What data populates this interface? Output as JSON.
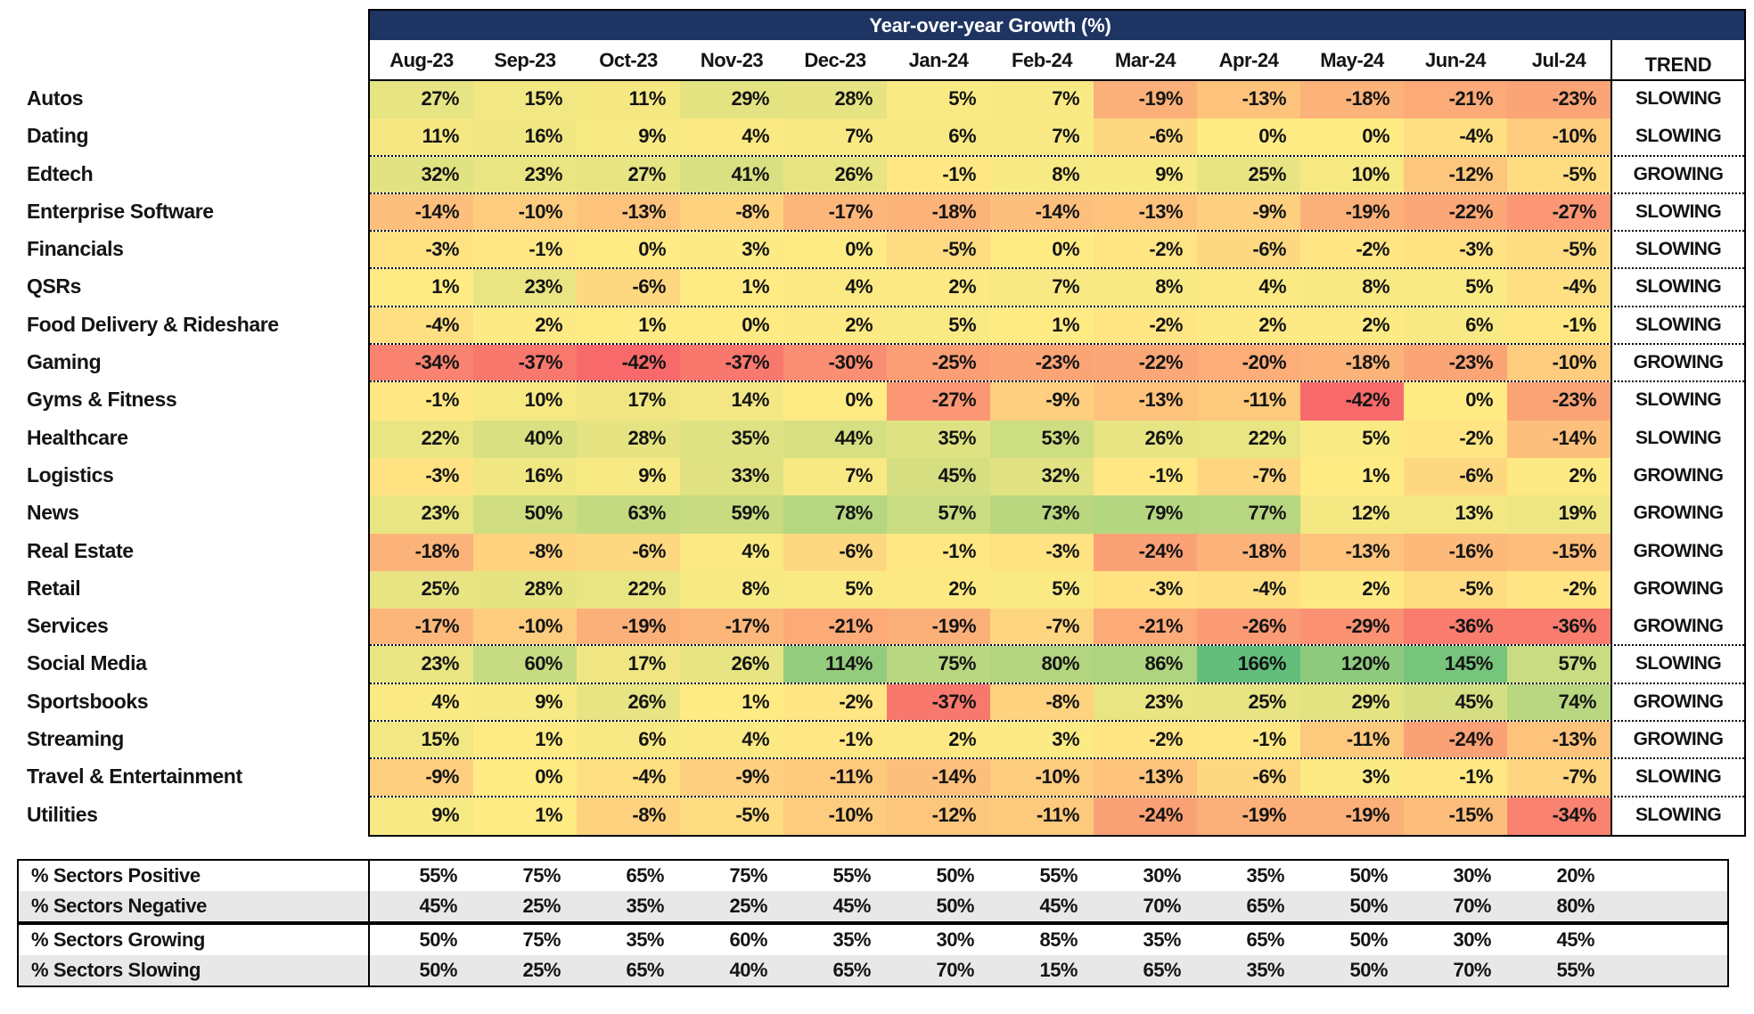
{
  "chart_data": {
    "type": "heatmap",
    "title": "Year-over-year Growth (%)",
    "trend_header": "TREND",
    "columns": [
      "Aug-23",
      "Sep-23",
      "Oct-23",
      "Nov-23",
      "Dec-23",
      "Jan-24",
      "Feb-24",
      "Mar-24",
      "Apr-24",
      "May-24",
      "Jun-24",
      "Jul-24"
    ],
    "value_suffix": "%",
    "rows": [
      {
        "label": "Autos",
        "values": [
          27,
          15,
          11,
          29,
          28,
          5,
          7,
          -19,
          -13,
          -18,
          -21,
          -23
        ],
        "trend": "SLOWING",
        "dotted_below": false
      },
      {
        "label": "Dating",
        "values": [
          11,
          16,
          9,
          4,
          7,
          6,
          7,
          -6,
          0,
          0,
          -4,
          -10
        ],
        "trend": "SLOWING",
        "dotted_below": true
      },
      {
        "label": "Edtech",
        "values": [
          32,
          23,
          27,
          41,
          26,
          -1,
          8,
          9,
          25,
          10,
          -12,
          -5
        ],
        "trend": "GROWING",
        "dotted_below": true
      },
      {
        "label": "Enterprise Software",
        "values": [
          -14,
          -10,
          -13,
          -8,
          -17,
          -18,
          -14,
          -13,
          -9,
          -19,
          -22,
          -27
        ],
        "trend": "SLOWING",
        "dotted_below": true
      },
      {
        "label": "Financials",
        "values": [
          -3,
          -1,
          0,
          3,
          0,
          -5,
          0,
          -2,
          -6,
          -2,
          -3,
          -5
        ],
        "trend": "SLOWING",
        "dotted_below": true
      },
      {
        "label": "QSRs",
        "values": [
          1,
          23,
          -6,
          1,
          4,
          2,
          7,
          8,
          4,
          8,
          5,
          -4
        ],
        "trend": "SLOWING",
        "dotted_below": true
      },
      {
        "label": "Food Delivery & Rideshare",
        "values": [
          -4,
          2,
          1,
          0,
          2,
          5,
          1,
          -2,
          2,
          2,
          6,
          -1
        ],
        "trend": "SLOWING",
        "dotted_below": true
      },
      {
        "label": "Gaming",
        "values": [
          -34,
          -37,
          -42,
          -37,
          -30,
          -25,
          -23,
          -22,
          -20,
          -18,
          -23,
          -10
        ],
        "trend": "GROWING",
        "dotted_below": true
      },
      {
        "label": "Gyms & Fitness",
        "values": [
          -1,
          10,
          17,
          14,
          0,
          -27,
          -9,
          -13,
          -11,
          -42,
          0,
          -23
        ],
        "trend": "SLOWING",
        "dotted_below": false
      },
      {
        "label": "Healthcare",
        "values": [
          22,
          40,
          28,
          35,
          44,
          35,
          53,
          26,
          22,
          5,
          -2,
          -14
        ],
        "trend": "SLOWING",
        "dotted_below": false
      },
      {
        "label": "Logistics",
        "values": [
          -3,
          16,
          9,
          33,
          7,
          45,
          32,
          -1,
          -7,
          1,
          -6,
          2
        ],
        "trend": "GROWING",
        "dotted_below": false
      },
      {
        "label": "News",
        "values": [
          23,
          50,
          63,
          59,
          78,
          57,
          73,
          79,
          77,
          12,
          13,
          19
        ],
        "trend": "GROWING",
        "dotted_below": false
      },
      {
        "label": "Real Estate",
        "values": [
          -18,
          -8,
          -6,
          4,
          -6,
          -1,
          -3,
          -24,
          -18,
          -13,
          -16,
          -15
        ],
        "trend": "GROWING",
        "dotted_below": false
      },
      {
        "label": "Retail",
        "values": [
          25,
          28,
          22,
          8,
          5,
          2,
          5,
          -3,
          -4,
          2,
          -5,
          -2
        ],
        "trend": "GROWING",
        "dotted_below": false
      },
      {
        "label": "Services",
        "values": [
          -17,
          -10,
          -19,
          -17,
          -21,
          -19,
          -7,
          -21,
          -26,
          -29,
          -36,
          -36
        ],
        "trend": "GROWING",
        "dotted_below": true
      },
      {
        "label": "Social Media",
        "values": [
          23,
          60,
          17,
          26,
          114,
          75,
          80,
          86,
          166,
          120,
          145,
          57
        ],
        "trend": "SLOWING",
        "dotted_below": true
      },
      {
        "label": "Sportsbooks",
        "values": [
          4,
          9,
          26,
          1,
          -2,
          -37,
          -8,
          23,
          25,
          29,
          45,
          74
        ],
        "trend": "GROWING",
        "dotted_below": true
      },
      {
        "label": "Streaming",
        "values": [
          15,
          1,
          6,
          4,
          -1,
          2,
          3,
          -2,
          -1,
          -11,
          -24,
          -13
        ],
        "trend": "GROWING",
        "dotted_below": true
      },
      {
        "label": "Travel & Entertainment",
        "values": [
          -9,
          0,
          -4,
          -9,
          -11,
          -14,
          -10,
          -13,
          -6,
          3,
          -1,
          -7
        ],
        "trend": "SLOWING",
        "dotted_below": true
      },
      {
        "label": "Utilities",
        "values": [
          9,
          1,
          -8,
          -5,
          -10,
          -12,
          -11,
          -24,
          -19,
          -19,
          -15,
          -34
        ],
        "trend": "SLOWING",
        "dotted_below": false
      }
    ],
    "summary_groups": [
      {
        "rows": [
          {
            "label": "% Sectors Positive",
            "values": [
              55,
              75,
              65,
              75,
              55,
              50,
              55,
              30,
              35,
              50,
              30,
              20
            ],
            "shaded": false
          },
          {
            "label": "% Sectors Negative",
            "values": [
              45,
              25,
              35,
              25,
              45,
              50,
              45,
              70,
              65,
              50,
              70,
              80
            ],
            "shaded": true
          }
        ]
      },
      {
        "rows": [
          {
            "label": "% Sectors Growing",
            "values": [
              50,
              75,
              35,
              60,
              35,
              30,
              85,
              35,
              65,
              50,
              30,
              45
            ],
            "shaded": false
          },
          {
            "label": "% Sectors Slowing",
            "values": [
              50,
              25,
              65,
              40,
              65,
              70,
              15,
              65,
              35,
              50,
              70,
              55
            ],
            "shaded": true
          }
        ]
      }
    ],
    "colorscale": {
      "min": -42,
      "mid": 0,
      "max": 166,
      "min_color": "#F8696B",
      "mid_color": "#FFEB84",
      "max_color": "#63BE7B"
    },
    "layout": {
      "header_bg": "#1E3462",
      "header_text_color": "#FFFFFF",
      "summary_stripe_color": "#E8E8E8",
      "grid": "off",
      "legend": "none"
    }
  }
}
